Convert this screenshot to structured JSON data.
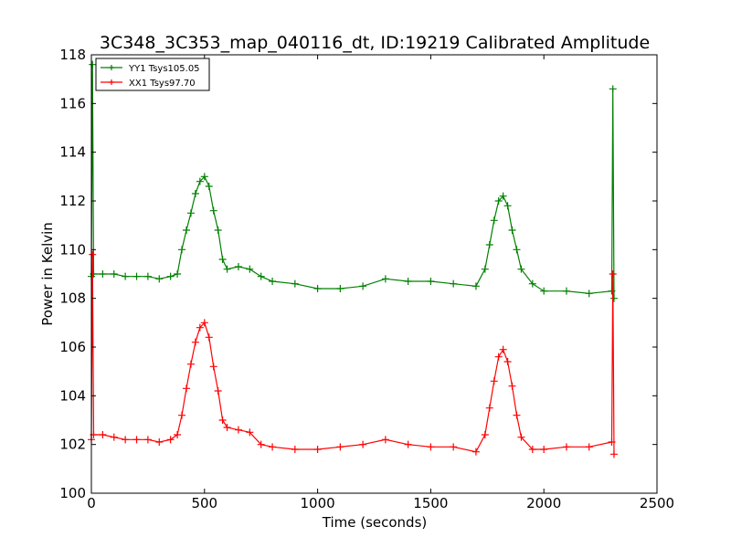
{
  "chart_data": {
    "type": "line",
    "title": "3C348_3C353_map_040116_dt, ID:19219 Calibrated Amplitude",
    "xlabel": "Time (seconds)",
    "ylabel": "Power in Kelvin",
    "xlim": [
      0,
      2500
    ],
    "ylim": [
      100,
      118
    ],
    "xticks": [
      "0",
      "500",
      "1000",
      "1500",
      "2000",
      "2500"
    ],
    "yticks": [
      "100",
      "102",
      "104",
      "106",
      "108",
      "110",
      "112",
      "114",
      "116",
      "118"
    ],
    "grid": false,
    "legend_position": "top-left",
    "series": [
      {
        "name": "YY1 Tsys105.05",
        "color": "#008000",
        "marker": "+",
        "x": [
          0,
          5,
          10,
          50,
          100,
          150,
          200,
          250,
          300,
          350,
          380,
          400,
          420,
          440,
          460,
          480,
          500,
          520,
          540,
          560,
          580,
          600,
          650,
          700,
          750,
          800,
          900,
          1000,
          1100,
          1200,
          1300,
          1400,
          1500,
          1600,
          1700,
          1740,
          1760,
          1780,
          1800,
          1820,
          1840,
          1860,
          1880,
          1900,
          1950,
          2000,
          2100,
          2200,
          2300,
          2305,
          2310
        ],
        "y": [
          108.9,
          117.6,
          109.0,
          109.0,
          109.0,
          108.9,
          108.9,
          108.9,
          108.8,
          108.9,
          109.0,
          110.0,
          110.8,
          111.5,
          112.3,
          112.8,
          113.0,
          112.6,
          111.6,
          110.8,
          109.6,
          109.2,
          109.3,
          109.2,
          108.9,
          108.7,
          108.6,
          108.4,
          108.4,
          108.5,
          108.8,
          108.7,
          108.7,
          108.6,
          108.5,
          109.2,
          110.2,
          111.2,
          112.0,
          112.2,
          111.8,
          110.8,
          110.0,
          109.2,
          108.6,
          108.3,
          108.3,
          108.2,
          108.3,
          116.6,
          108.0
        ]
      },
      {
        "name": "XX1 Tsys97.70",
        "color": "#ff0000",
        "marker": "+",
        "x": [
          0,
          5,
          10,
          50,
          100,
          150,
          200,
          250,
          300,
          350,
          380,
          400,
          420,
          440,
          460,
          480,
          500,
          520,
          540,
          560,
          580,
          600,
          650,
          700,
          750,
          800,
          900,
          1000,
          1100,
          1200,
          1300,
          1400,
          1500,
          1600,
          1700,
          1740,
          1760,
          1780,
          1800,
          1820,
          1840,
          1860,
          1880,
          1900,
          1950,
          2000,
          2100,
          2200,
          2300,
          2305,
          2310
        ],
        "y": [
          102.2,
          109.8,
          102.4,
          102.4,
          102.3,
          102.2,
          102.2,
          102.2,
          102.1,
          102.2,
          102.4,
          103.2,
          104.3,
          105.3,
          106.2,
          106.8,
          107.0,
          106.4,
          105.2,
          104.2,
          103.0,
          102.7,
          102.6,
          102.5,
          102.0,
          101.9,
          101.8,
          101.8,
          101.9,
          102.0,
          102.2,
          102.0,
          101.9,
          101.9,
          101.7,
          102.4,
          103.5,
          104.6,
          105.6,
          105.9,
          105.4,
          104.4,
          103.2,
          102.3,
          101.8,
          101.8,
          101.9,
          101.9,
          102.1,
          109.0,
          101.6
        ]
      }
    ]
  }
}
